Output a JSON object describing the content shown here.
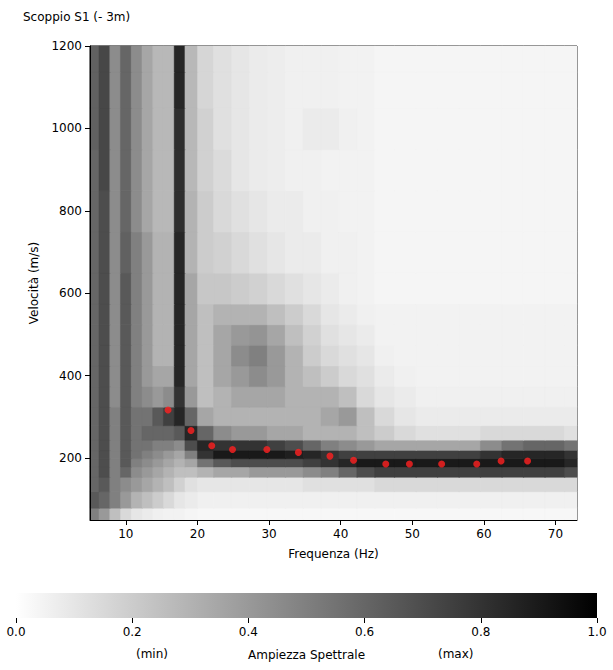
{
  "chart_data": {
    "type": "heatmap",
    "title": "Scoppio S1 (- 3m)",
    "x_label": "Frequenza (Hz)",
    "y_label": "Velocità (m/s)",
    "xlim": [
      5,
      73
    ],
    "xticks": [
      10,
      20,
      30,
      40,
      50,
      60,
      70
    ],
    "ylim": [
      50,
      1200
    ],
    "yticks": [
      200,
      400,
      600,
      800,
      1000,
      1200
    ],
    "grid": false,
    "cells": {
      "x": [
        5.5,
        7,
        8.5,
        10,
        11.5,
        13,
        14.5,
        16,
        17.5,
        19,
        21,
        23.5,
        26,
        28.5,
        31,
        33.5,
        36,
        38.5,
        41,
        43.5,
        46,
        49,
        52,
        55,
        58,
        61,
        64,
        67,
        70,
        72.5
      ],
      "y": [
        60,
        100,
        140,
        170,
        190,
        210,
        230,
        260,
        300,
        350,
        400,
        450,
        500,
        550,
        600,
        700,
        800,
        900,
        1000,
        1100,
        1175
      ],
      "values": [
        [
          0.5,
          0.4,
          0.25,
          0.15,
          0.1,
          0.08,
          0.06,
          0.05,
          0.05,
          0.04,
          0.03,
          0.03,
          0.03,
          0.03,
          0.03,
          0.03,
          0.03,
          0.03,
          0.03,
          0.03,
          0.03,
          0.03,
          0.03,
          0.03,
          0.03,
          0.03,
          0.03,
          0.03,
          0.03,
          0.03
        ],
        [
          0.65,
          0.6,
          0.5,
          0.4,
          0.3,
          0.25,
          0.2,
          0.15,
          0.1,
          0.08,
          0.06,
          0.06,
          0.06,
          0.06,
          0.06,
          0.06,
          0.06,
          0.06,
          0.06,
          0.06,
          0.06,
          0.06,
          0.06,
          0.06,
          0.06,
          0.06,
          0.06,
          0.06,
          0.06,
          0.06
        ],
        [
          0.6,
          0.65,
          0.5,
          0.45,
          0.4,
          0.35,
          0.3,
          0.25,
          0.18,
          0.12,
          0.1,
          0.1,
          0.1,
          0.1,
          0.1,
          0.1,
          0.12,
          0.12,
          0.12,
          0.12,
          0.15,
          0.15,
          0.15,
          0.15,
          0.15,
          0.15,
          0.15,
          0.15,
          0.15,
          0.15
        ],
        [
          0.6,
          0.7,
          0.5,
          0.6,
          0.45,
          0.4,
          0.35,
          0.3,
          0.25,
          0.25,
          0.3,
          0.35,
          0.35,
          0.4,
          0.4,
          0.4,
          0.45,
          0.5,
          0.6,
          0.7,
          0.75,
          0.75,
          0.75,
          0.75,
          0.75,
          0.75,
          0.75,
          0.75,
          0.75,
          0.7
        ],
        [
          0.6,
          0.7,
          0.5,
          0.65,
          0.5,
          0.45,
          0.4,
          0.35,
          0.3,
          0.35,
          0.55,
          0.65,
          0.7,
          0.7,
          0.7,
          0.7,
          0.75,
          0.8,
          0.85,
          0.9,
          0.9,
          0.9,
          0.9,
          0.9,
          0.9,
          0.9,
          0.9,
          0.9,
          0.9,
          0.85
        ],
        [
          0.6,
          0.7,
          0.5,
          0.65,
          0.55,
          0.5,
          0.45,
          0.4,
          0.35,
          0.5,
          0.8,
          0.9,
          0.9,
          0.9,
          0.9,
          0.88,
          0.85,
          0.8,
          0.75,
          0.75,
          0.75,
          0.75,
          0.75,
          0.75,
          0.75,
          0.8,
          0.85,
          0.85,
          0.85,
          0.8
        ],
        [
          0.6,
          0.7,
          0.5,
          0.65,
          0.55,
          0.55,
          0.5,
          0.5,
          0.45,
          0.7,
          0.85,
          0.8,
          0.8,
          0.8,
          0.75,
          0.7,
          0.6,
          0.5,
          0.45,
          0.4,
          0.35,
          0.35,
          0.35,
          0.35,
          0.35,
          0.45,
          0.55,
          0.6,
          0.6,
          0.55
        ],
        [
          0.6,
          0.7,
          0.5,
          0.65,
          0.55,
          0.6,
          0.6,
          0.6,
          0.65,
          0.85,
          0.6,
          0.45,
          0.4,
          0.4,
          0.35,
          0.35,
          0.3,
          0.3,
          0.3,
          0.25,
          0.2,
          0.15,
          0.12,
          0.12,
          0.12,
          0.15,
          0.15,
          0.15,
          0.15,
          0.12
        ],
        [
          0.6,
          0.7,
          0.5,
          0.65,
          0.55,
          0.55,
          0.65,
          0.75,
          0.85,
          0.6,
          0.35,
          0.3,
          0.3,
          0.3,
          0.3,
          0.3,
          0.3,
          0.35,
          0.4,
          0.25,
          0.15,
          0.1,
          0.08,
          0.08,
          0.08,
          0.08,
          0.08,
          0.08,
          0.08,
          0.08
        ],
        [
          0.6,
          0.7,
          0.45,
          0.65,
          0.5,
          0.45,
          0.4,
          0.45,
          0.8,
          0.4,
          0.25,
          0.3,
          0.35,
          0.35,
          0.35,
          0.3,
          0.3,
          0.3,
          0.25,
          0.15,
          0.1,
          0.08,
          0.06,
          0.06,
          0.06,
          0.06,
          0.06,
          0.06,
          0.06,
          0.06
        ],
        [
          0.6,
          0.7,
          0.45,
          0.65,
          0.5,
          0.4,
          0.35,
          0.35,
          0.85,
          0.35,
          0.25,
          0.35,
          0.4,
          0.45,
          0.4,
          0.3,
          0.25,
          0.2,
          0.15,
          0.12,
          0.08,
          0.06,
          0.05,
          0.05,
          0.05,
          0.05,
          0.05,
          0.05,
          0.05,
          0.05
        ],
        [
          0.6,
          0.7,
          0.45,
          0.65,
          0.5,
          0.4,
          0.3,
          0.3,
          0.85,
          0.35,
          0.25,
          0.35,
          0.45,
          0.5,
          0.4,
          0.3,
          0.2,
          0.15,
          0.12,
          0.1,
          0.06,
          0.05,
          0.05,
          0.05,
          0.05,
          0.05,
          0.05,
          0.05,
          0.05,
          0.05
        ],
        [
          0.6,
          0.7,
          0.45,
          0.65,
          0.5,
          0.4,
          0.3,
          0.3,
          0.85,
          0.35,
          0.25,
          0.35,
          0.4,
          0.42,
          0.35,
          0.25,
          0.18,
          0.12,
          0.1,
          0.08,
          0.05,
          0.05,
          0.05,
          0.05,
          0.05,
          0.05,
          0.05,
          0.05,
          0.05,
          0.05
        ],
        [
          0.6,
          0.7,
          0.45,
          0.65,
          0.5,
          0.4,
          0.3,
          0.3,
          0.85,
          0.35,
          0.25,
          0.3,
          0.3,
          0.3,
          0.25,
          0.2,
          0.15,
          0.1,
          0.08,
          0.06,
          0.05,
          0.05,
          0.05,
          0.05,
          0.05,
          0.05,
          0.05,
          0.05,
          0.05,
          0.05
        ],
        [
          0.6,
          0.7,
          0.45,
          0.65,
          0.5,
          0.4,
          0.3,
          0.3,
          0.85,
          0.35,
          0.22,
          0.22,
          0.2,
          0.18,
          0.15,
          0.12,
          0.1,
          0.08,
          0.06,
          0.05,
          0.04,
          0.04,
          0.04,
          0.04,
          0.04,
          0.04,
          0.04,
          0.04,
          0.04,
          0.04
        ],
        [
          0.6,
          0.7,
          0.45,
          0.62,
          0.5,
          0.4,
          0.3,
          0.3,
          0.85,
          0.3,
          0.2,
          0.18,
          0.15,
          0.12,
          0.1,
          0.08,
          0.08,
          0.06,
          0.06,
          0.05,
          0.04,
          0.04,
          0.04,
          0.04,
          0.04,
          0.04,
          0.04,
          0.04,
          0.04,
          0.04
        ],
        [
          0.6,
          0.7,
          0.45,
          0.6,
          0.45,
          0.35,
          0.28,
          0.28,
          0.82,
          0.3,
          0.2,
          0.15,
          0.12,
          0.1,
          0.08,
          0.08,
          0.06,
          0.06,
          0.05,
          0.05,
          0.04,
          0.04,
          0.04,
          0.04,
          0.04,
          0.04,
          0.04,
          0.04,
          0.04,
          0.04
        ],
        [
          0.6,
          0.72,
          0.45,
          0.6,
          0.45,
          0.35,
          0.28,
          0.28,
          0.82,
          0.28,
          0.18,
          0.14,
          0.1,
          0.08,
          0.07,
          0.06,
          0.06,
          0.05,
          0.05,
          0.05,
          0.04,
          0.04,
          0.04,
          0.04,
          0.04,
          0.04,
          0.04,
          0.04,
          0.04,
          0.04
        ],
        [
          0.62,
          0.72,
          0.45,
          0.6,
          0.45,
          0.35,
          0.28,
          0.28,
          0.82,
          0.28,
          0.18,
          0.12,
          0.1,
          0.08,
          0.07,
          0.06,
          0.08,
          0.08,
          0.06,
          0.05,
          0.04,
          0.04,
          0.04,
          0.04,
          0.04,
          0.04,
          0.04,
          0.04,
          0.04,
          0.04
        ],
        [
          0.62,
          0.72,
          0.45,
          0.6,
          0.45,
          0.35,
          0.28,
          0.28,
          0.85,
          0.28,
          0.16,
          0.12,
          0.1,
          0.08,
          0.07,
          0.06,
          0.06,
          0.06,
          0.05,
          0.05,
          0.04,
          0.04,
          0.04,
          0.04,
          0.04,
          0.04,
          0.04,
          0.04,
          0.04,
          0.04
        ],
        [
          0.62,
          0.72,
          0.45,
          0.6,
          0.45,
          0.35,
          0.28,
          0.28,
          0.85,
          0.28,
          0.16,
          0.12,
          0.1,
          0.08,
          0.07,
          0.06,
          0.06,
          0.06,
          0.05,
          0.05,
          0.04,
          0.04,
          0.04,
          0.04,
          0.04,
          0.04,
          0.04,
          0.04,
          0.04,
          0.04
        ]
      ]
    },
    "colorbar": {
      "title": "Ampiezza Spettrale",
      "range": [
        0,
        1
      ],
      "ticks": [
        {
          "value": 0,
          "label": "0.0"
        },
        {
          "value": 0.2,
          "label": "0.2"
        },
        {
          "value": 0.4,
          "label": "0.4"
        },
        {
          "value": 0.6,
          "label": "0.6"
        },
        {
          "value": 0.8,
          "label": "0.8"
        },
        {
          "value": 1,
          "label": "1.0"
        }
      ],
      "min_label": "(min)",
      "max_label": "(max)"
    },
    "series": [
      {
        "type": "scatter",
        "color": "#ff2020",
        "marker": "circle",
        "x": [
          15.9,
          19.1,
          22.0,
          24.9,
          29.7,
          34.1,
          38.5,
          41.8,
          46.3,
          49.6,
          54.1,
          59.0,
          62.4,
          66.1
        ],
        "values": [
          317,
          267,
          230,
          221,
          221,
          214,
          205,
          195,
          186,
          186,
          186,
          186,
          193,
          193
        ]
      }
    ]
  }
}
